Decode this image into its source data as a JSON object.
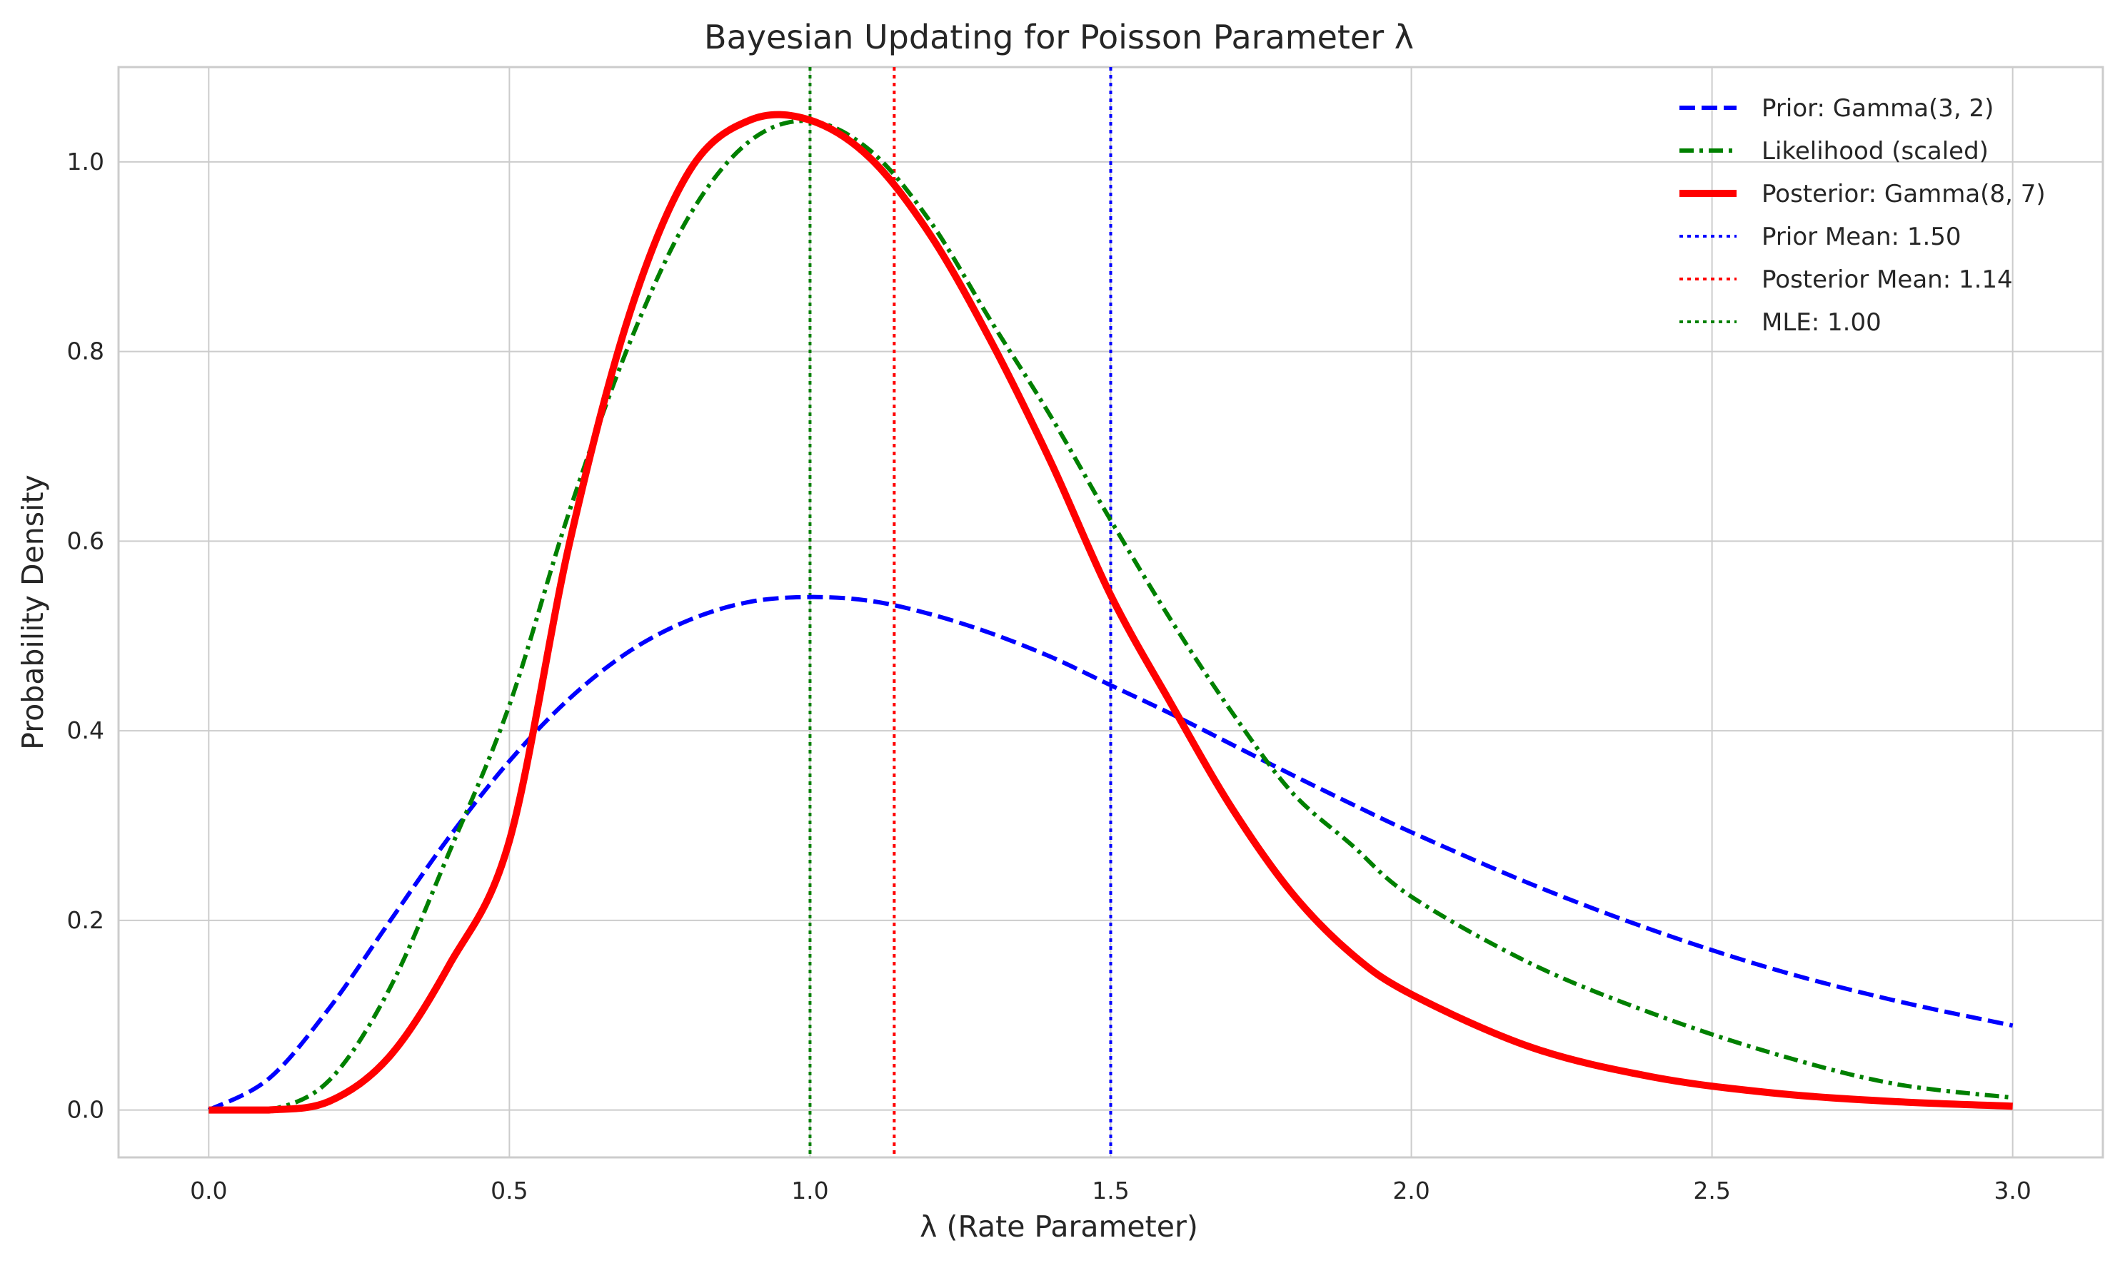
{
  "chart_data": {
    "type": "line",
    "title": "Bayesian Updating for Poisson Parameter λ",
    "xlabel": "λ (Rate Parameter)",
    "ylabel": "Probability Density",
    "xlim": [
      -0.15,
      3.15
    ],
    "ylim": [
      -0.05,
      1.1
    ],
    "x_ticks": [
      0.0,
      0.5,
      1.0,
      1.5,
      2.0,
      2.5,
      3.0
    ],
    "x_tick_labels": [
      "0.0",
      "0.5",
      "1.0",
      "1.5",
      "2.0",
      "2.5",
      "3.0"
    ],
    "y_ticks": [
      0.0,
      0.2,
      0.4,
      0.6,
      0.8,
      1.0
    ],
    "y_tick_labels": [
      "0.0",
      "0.2",
      "0.4",
      "0.6",
      "0.8",
      "1.0"
    ],
    "grid": true,
    "legend_position": "top-right",
    "x": [
      0.0,
      0.1,
      0.2,
      0.3,
      0.4,
      0.5,
      0.6,
      0.7,
      0.8,
      0.9,
      1.0,
      1.1,
      1.2,
      1.3,
      1.4,
      1.5,
      1.6,
      1.7,
      1.8,
      1.9,
      2.0,
      2.2,
      2.4,
      2.6,
      2.8,
      3.0
    ],
    "series": [
      {
        "name": "Prior: Gamma(3, 2)",
        "style": "dashed",
        "color": "#0000ff",
        "values": [
          0.0,
          0.033,
          0.107,
          0.198,
          0.288,
          0.368,
          0.434,
          0.484,
          0.517,
          0.536,
          0.541,
          0.537,
          0.523,
          0.503,
          0.478,
          0.448,
          0.418,
          0.386,
          0.354,
          0.323,
          0.293,
          0.238,
          0.19,
          0.149,
          0.116,
          0.089
        ]
      },
      {
        "name": "Likelihood (scaled)",
        "style": "dashdot",
        "color": "#008000",
        "values": [
          0.0,
          0.0,
          0.031,
          0.127,
          0.272,
          0.427,
          0.632,
          0.809,
          0.944,
          1.022,
          1.043,
          1.012,
          0.937,
          0.833,
          0.732,
          0.622,
          0.517,
          0.421,
          0.336,
          0.28,
          0.225,
          0.154,
          0.102,
          0.06,
          0.028,
          0.013
        ]
      },
      {
        "name": "Posterior: Gamma(8, 7)",
        "style": "solid",
        "color": "#ff0000",
        "values": [
          0.0,
          0.0,
          0.009,
          0.056,
          0.153,
          0.284,
          0.598,
          0.84,
          0.991,
          1.044,
          1.044,
          1.004,
          0.923,
          0.812,
          0.684,
          0.543,
          0.429,
          0.32,
          0.23,
          0.165,
          0.122,
          0.066,
          0.035,
          0.018,
          0.009,
          0.004
        ]
      }
    ],
    "vlines": [
      {
        "name": "Prior Mean: 1.50",
        "x": 1.5,
        "color": "#0000ff",
        "style": "dotted"
      },
      {
        "name": "Posterior Mean: 1.14",
        "x": 1.14,
        "color": "#ff0000",
        "style": "dotted"
      },
      {
        "name": "MLE: 1.00",
        "x": 1.0,
        "color": "#008000",
        "style": "dotted"
      }
    ]
  }
}
